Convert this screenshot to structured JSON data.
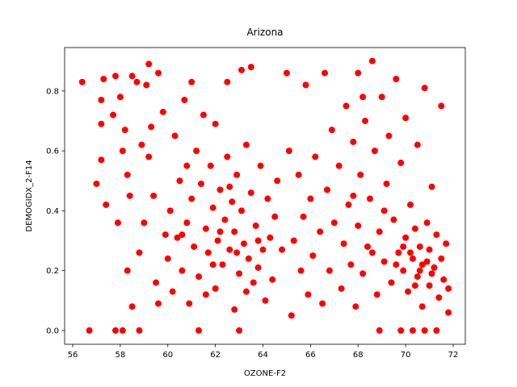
{
  "chart_data": {
    "type": "scatter",
    "title": "Arizona",
    "x_label": "OZONE-F2",
    "y_label": "DEMOGIDX_2-F14",
    "color": "#ff0000",
    "xlim": [
      55.66,
      72.51
    ],
    "ylim": [
      -0.046,
      0.945
    ],
    "xticks": [
      56,
      58,
      60,
      62,
      64,
      66,
      68,
      70,
      72
    ],
    "yticks": [
      {
        "value": 0,
        "label": "0.0"
      },
      0.2,
      0.4,
      0.6,
      0.8
    ],
    "grid": false,
    "x": [
      56.4,
      56.7,
      57,
      57.2,
      57.2,
      57.3,
      57.2,
      57.4,
      57.7,
      57.8,
      57.8,
      57.9,
      58,
      58.1,
      58.1,
      58.2,
      58.3,
      58.3,
      58.4,
      58.5,
      58.5,
      58.7,
      58.8,
      58.8,
      58.9,
      59,
      59.1,
      59.2,
      59.2,
      59.3,
      59.4,
      59.5,
      59.6,
      59.6,
      59.8,
      59.9,
      60,
      60.1,
      60.2,
      60.3,
      60.4,
      60.5,
      60.6,
      60.7,
      60.8,
      60.9,
      61,
      61,
      61.1,
      61.2,
      61.3,
      61.3,
      61.4,
      61.5,
      61.6,
      61.7,
      61.8,
      61.9,
      62,
      62,
      62.1,
      62.2,
      62.3,
      62.4,
      62.5,
      62.5,
      62.6,
      62.7,
      62.8,
      62.8,
      62.9,
      63,
      63,
      63.1,
      63.1,
      63.2,
      63.3,
      63.4,
      63.5,
      63.5,
      63.6,
      63.7,
      63.8,
      63.9,
      64,
      64.1,
      64.2,
      64.3,
      64.4,
      64.5,
      64.6,
      60.8,
      61.6,
      62.9,
      63.3,
      62.2,
      61.9,
      60.6,
      62.6,
      63.8,
      64.8,
      65,
      65.1,
      65.2,
      65.3,
      65.5,
      65.6,
      65.7,
      65.8,
      65.9,
      66,
      66.1,
      66.2,
      66.4,
      66.5,
      66.6,
      66.7,
      66.8,
      66.9,
      67,
      67.2,
      67.3,
      67.4,
      67.5,
      67.6,
      67.7,
      67.8,
      67.9,
      68,
      68,
      68.1,
      68.2,
      68.3,
      68.4,
      68.5,
      68.6,
      68.7,
      68.8,
      68.9,
      68.9,
      69,
      69.1,
      69.2,
      69.3,
      69.4,
      69.5,
      69.6,
      69.7,
      69.8,
      69.8,
      69.9,
      70,
      70,
      70.1,
      70.2,
      70.3,
      70.3,
      70.4,
      70.5,
      70.5,
      70.6,
      70.7,
      70.7,
      70.8,
      70.8,
      70.9,
      71,
      71,
      71.1,
      71.2,
      71.3,
      71.3,
      71.4,
      71.5,
      71.5,
      71.6,
      71.7,
      71.8,
      71.8,
      70.2,
      70.6,
      70.9,
      69.9,
      70.4,
      71.1,
      69.6,
      68.6,
      69.1,
      68.2,
      67.8
    ],
    "values": [
      0.83,
      0,
      0.49,
      0.77,
      0.69,
      0.84,
      0.57,
      0.42,
      0.72,
      0.85,
      0,
      0.36,
      0.78,
      0.6,
      0,
      0.67,
      0.52,
      0.2,
      0.45,
      0.85,
      0.08,
      0.83,
      0,
      0.26,
      0.62,
      0.36,
      0.82,
      0.89,
      0.58,
      0.68,
      0.45,
      0.16,
      0.86,
      0.09,
      0.73,
      0.32,
      0.24,
      0.4,
      0.13,
      0.65,
      0.31,
      0.5,
      0.2,
      0.77,
      0.36,
      0.09,
      0.44,
      0.83,
      0.28,
      0.6,
      0,
      0.18,
      0.49,
      0.72,
      0.34,
      0.26,
      0.55,
      0.41,
      0.14,
      0.69,
      0.3,
      0.47,
      0.22,
      0.37,
      0.58,
      0.83,
      0.27,
      0.43,
      0.07,
      0.33,
      0.52,
      0,
      0.19,
      0.87,
      0.4,
      0.29,
      0.62,
      0.24,
      0.46,
      0.88,
      0.16,
      0.35,
      0.21,
      0.55,
      0.27,
      0.1,
      0.44,
      0.31,
      0.17,
      0.38,
      0.5,
      0.55,
      0.12,
      0.26,
      0.13,
      0.33,
      0.22,
      0.32,
      0.48,
      0.3,
      0.27,
      0.86,
      0.6,
      0.05,
      0.3,
      0.52,
      0.2,
      0.38,
      0.82,
      0.12,
      0.44,
      0.25,
      0.58,
      0.33,
      0.09,
      0.86,
      0.47,
      0.2,
      0.67,
      0.36,
      0.55,
      0.14,
      0.29,
      0.75,
      0.42,
      0.22,
      0.63,
      0.08,
      0.35,
      0.86,
      0.52,
      0.19,
      0.7,
      0.28,
      0.44,
      0.9,
      0.6,
      0.12,
      0,
      0.33,
      0.78,
      0.23,
      0.49,
      0.65,
      0.16,
      0.37,
      0.84,
      0.26,
      0,
      0.56,
      0.2,
      0.31,
      0.71,
      0.13,
      0.42,
      0,
      0.24,
      0.34,
      0.18,
      0.62,
      0.28,
      0.08,
      0.22,
      0.81,
      0,
      0.36,
      0.15,
      0.27,
      0.48,
      0.21,
      0,
      0.32,
      0.11,
      0.75,
      0.24,
      0.17,
      0.29,
      0.06,
      0.14,
      0.26,
      0.2,
      0.23,
      0.28,
      0.15,
      0.19,
      0.22,
      0.26,
      0.4,
      0.78,
      0.45
    ]
  }
}
